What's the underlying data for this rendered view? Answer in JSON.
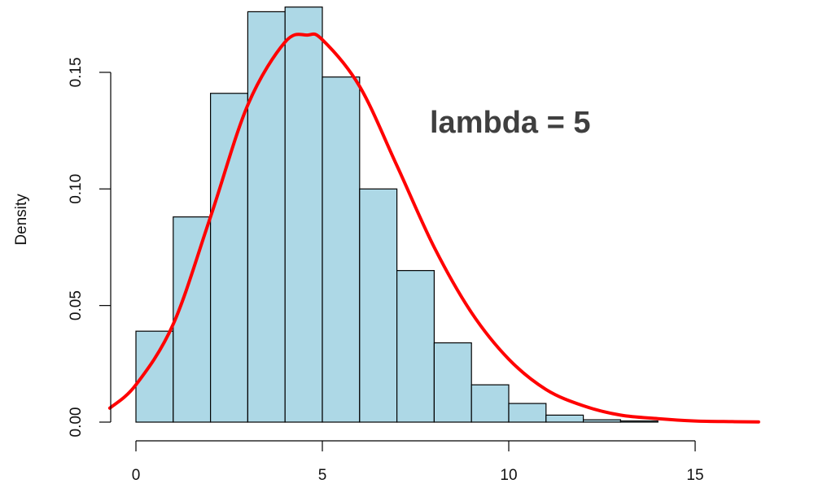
{
  "chart_data": {
    "type": "bar",
    "title": "",
    "xlabel": "",
    "ylabel": "Density",
    "annotation": "lambda = 5",
    "xlim": [
      -0.7,
      17
    ],
    "ylim": [
      0,
      0.18
    ],
    "x_ticks": [
      0,
      5,
      10,
      15
    ],
    "y_ticks": [
      "0.00",
      "0.05",
      "0.10",
      "0.15"
    ],
    "bin_edges": [
      0,
      1,
      2,
      3,
      4,
      5,
      6,
      7,
      8,
      9,
      10,
      11,
      12,
      13,
      14
    ],
    "values": [
      0.039,
      0.088,
      0.141,
      0.176,
      0.178,
      0.148,
      0.1,
      0.065,
      0.034,
      0.016,
      0.008,
      0.003,
      0.001,
      0.0005
    ],
    "grid": false,
    "series": [
      {
        "kind": "histogram",
        "color": "#add8e6",
        "edge_color": "#000000"
      },
      {
        "kind": "density-curve",
        "color": "#ff0000",
        "x": [
          -0.7,
          0,
          1,
          2,
          3,
          4,
          4.6,
          5,
          6,
          7,
          8,
          9,
          10,
          11,
          12,
          13,
          14,
          15,
          16,
          16.7
        ],
        "y": [
          0.006,
          0.016,
          0.042,
          0.088,
          0.136,
          0.163,
          0.166,
          0.164,
          0.144,
          0.11,
          0.075,
          0.047,
          0.027,
          0.014,
          0.007,
          0.003,
          0.0015,
          0.0005,
          0.0002,
          0.0001
        ]
      }
    ]
  }
}
